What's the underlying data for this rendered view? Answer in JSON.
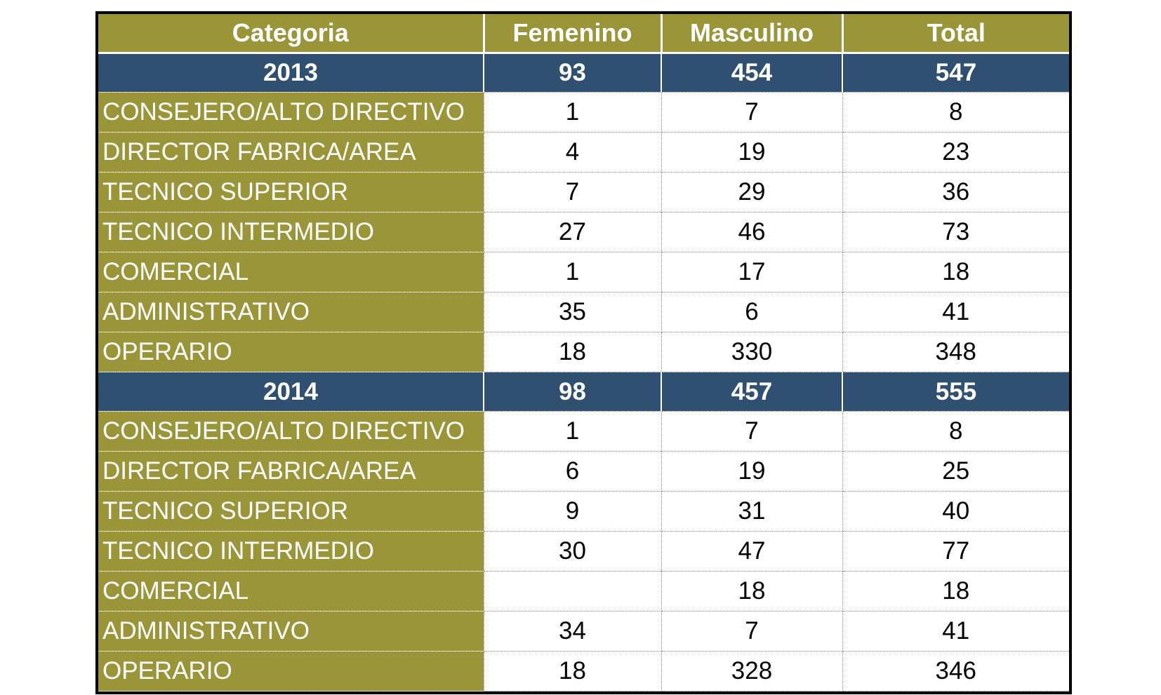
{
  "table": {
    "headers": [
      "Categoria",
      "Femenino",
      "Masculino",
      "Total"
    ],
    "years": [
      {
        "year": "2013",
        "femenino": "93",
        "masculino": "454",
        "total": "547",
        "rows": [
          {
            "categoria": "CONSEJERO/ALTO DIRECTIVO",
            "femenino": "1",
            "masculino": "7",
            "total": "8"
          },
          {
            "categoria": "DIRECTOR FABRICA/AREA",
            "femenino": "4",
            "masculino": "19",
            "total": "23"
          },
          {
            "categoria": "TECNICO SUPERIOR",
            "femenino": "7",
            "masculino": "29",
            "total": "36"
          },
          {
            "categoria": "TECNICO INTERMEDIO",
            "femenino": "27",
            "masculino": "46",
            "total": "73"
          },
          {
            "categoria": "COMERCIAL",
            "femenino": "1",
            "masculino": "17",
            "total": "18"
          },
          {
            "categoria": "ADMINISTRATIVO",
            "femenino": "35",
            "masculino": "6",
            "total": "41"
          },
          {
            "categoria": "OPERARIO",
            "femenino": "18",
            "masculino": "330",
            "total": "348"
          }
        ]
      },
      {
        "year": "2014",
        "femenino": "98",
        "masculino": "457",
        "total": "555",
        "rows": [
          {
            "categoria": "CONSEJERO/ALTO DIRECTIVO",
            "femenino": "1",
            "masculino": "7",
            "total": "8"
          },
          {
            "categoria": "DIRECTOR FABRICA/AREA",
            "femenino": "6",
            "masculino": "19",
            "total": "25"
          },
          {
            "categoria": "TECNICO SUPERIOR",
            "femenino": "9",
            "masculino": "31",
            "total": "40"
          },
          {
            "categoria": "TECNICO INTERMEDIO",
            "femenino": "30",
            "masculino": "47",
            "total": "77"
          },
          {
            "categoria": "COMERCIAL",
            "femenino": "",
            "masculino": "18",
            "total": "18"
          },
          {
            "categoria": "ADMINISTRATIVO",
            "femenino": "34",
            "masculino": "7",
            "total": "41"
          },
          {
            "categoria": "OPERARIO",
            "femenino": "18",
            "masculino": "328",
            "total": "346"
          }
        ]
      }
    ],
    "colors": {
      "olive": "#9b9539",
      "navy": "#2f5070",
      "header_text": "#ffffff",
      "cell_text": "#000000"
    }
  }
}
